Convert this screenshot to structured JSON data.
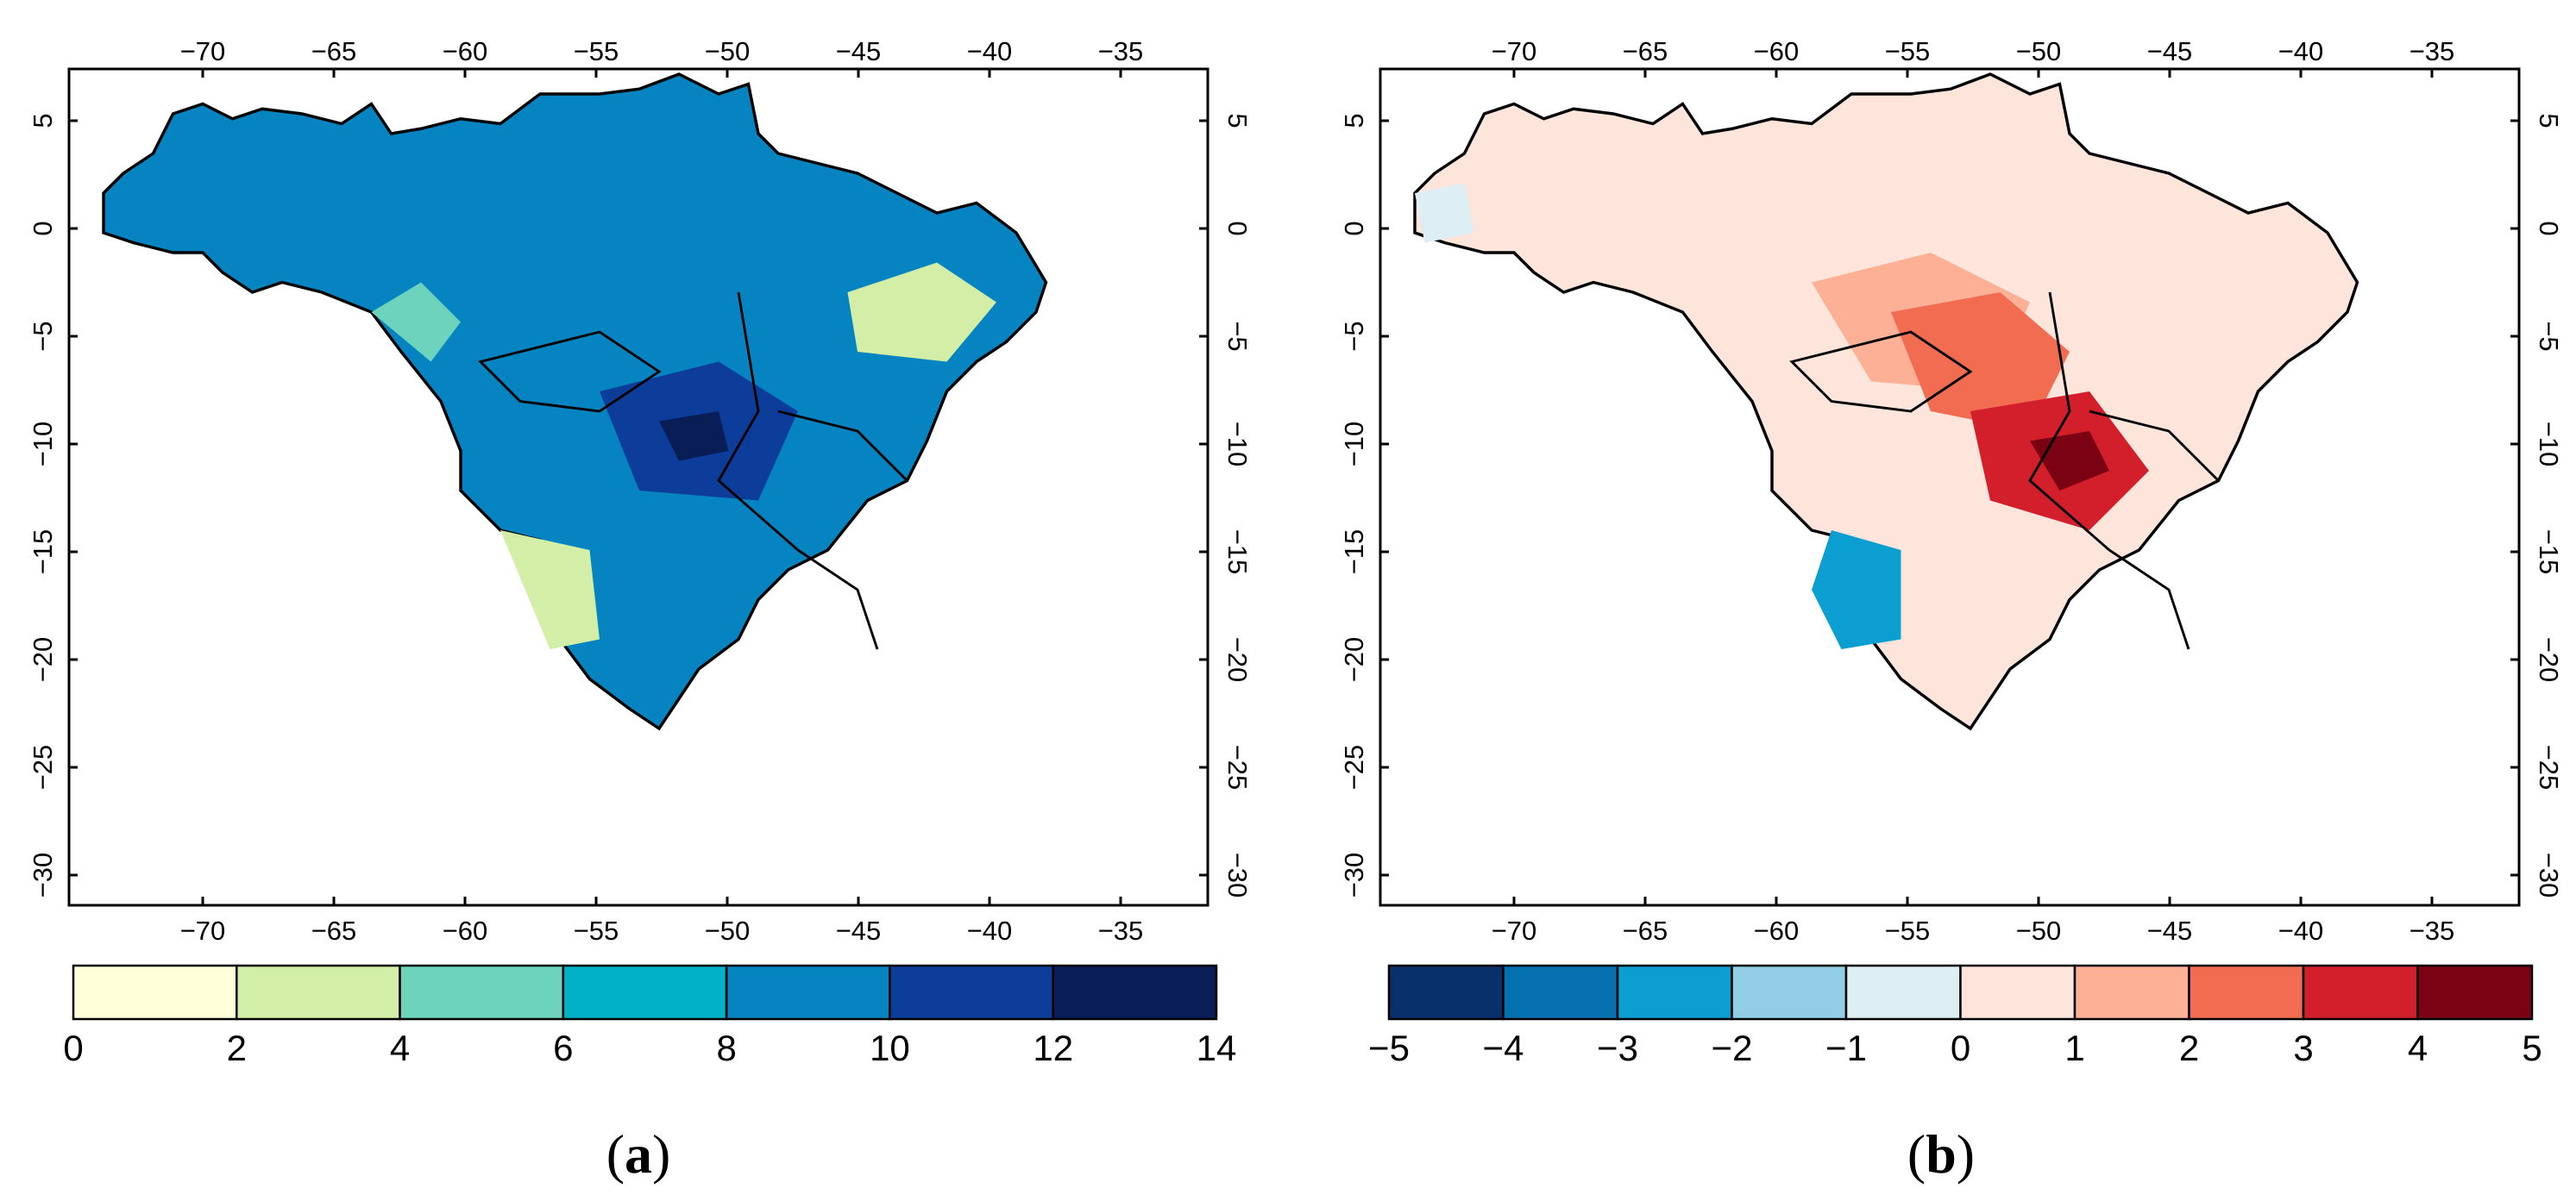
{
  "figure": {
    "panels": [
      {
        "caption_open": "(",
        "caption_letter": "a",
        "caption_close": ")",
        "colorbar": {
          "tick_labels": [
            "0",
            "2",
            "4",
            "6",
            "8",
            "10",
            "12",
            "14"
          ],
          "colors": [
            "#ffffd9",
            "#d3eea6",
            "#6ed3bc",
            "#00b1c7",
            "#0584c1",
            "#0d3d9a",
            "#091d57"
          ]
        },
        "lon_labels": [
          "−70",
          "−65",
          "−60",
          "−55",
          "−50",
          "−45",
          "−40",
          "−35"
        ],
        "lat_labels": [
          "5",
          "0",
          "−5",
          "−10",
          "−15",
          "−20",
          "−25",
          "−30"
        ],
        "fill_color": "#0584c1"
      },
      {
        "caption_open": "(",
        "caption_letter": "b",
        "caption_close": ")",
        "colorbar": {
          "tick_labels": [
            "−5",
            "−4",
            "−3",
            "−2",
            "−1",
            "0",
            "1",
            "2",
            "3",
            "4",
            "5"
          ],
          "colors": [
            "#08306b",
            "#0570b0",
            "#0a9fd0",
            "#92cde6",
            "#deeef5",
            "#fde5dc",
            "#fcb197",
            "#f26c52",
            "#d31e2b",
            "#7a0213"
          ]
        },
        "lon_labels": [
          "−70",
          "−65",
          "−60",
          "−55",
          "−50",
          "−45",
          "−40",
          "−35"
        ],
        "lat_labels": [
          "5",
          "0",
          "−5",
          "−10",
          "−15",
          "−20",
          "−25",
          "−30"
        ],
        "fill_color": "#fde5dc"
      }
    ]
  }
}
